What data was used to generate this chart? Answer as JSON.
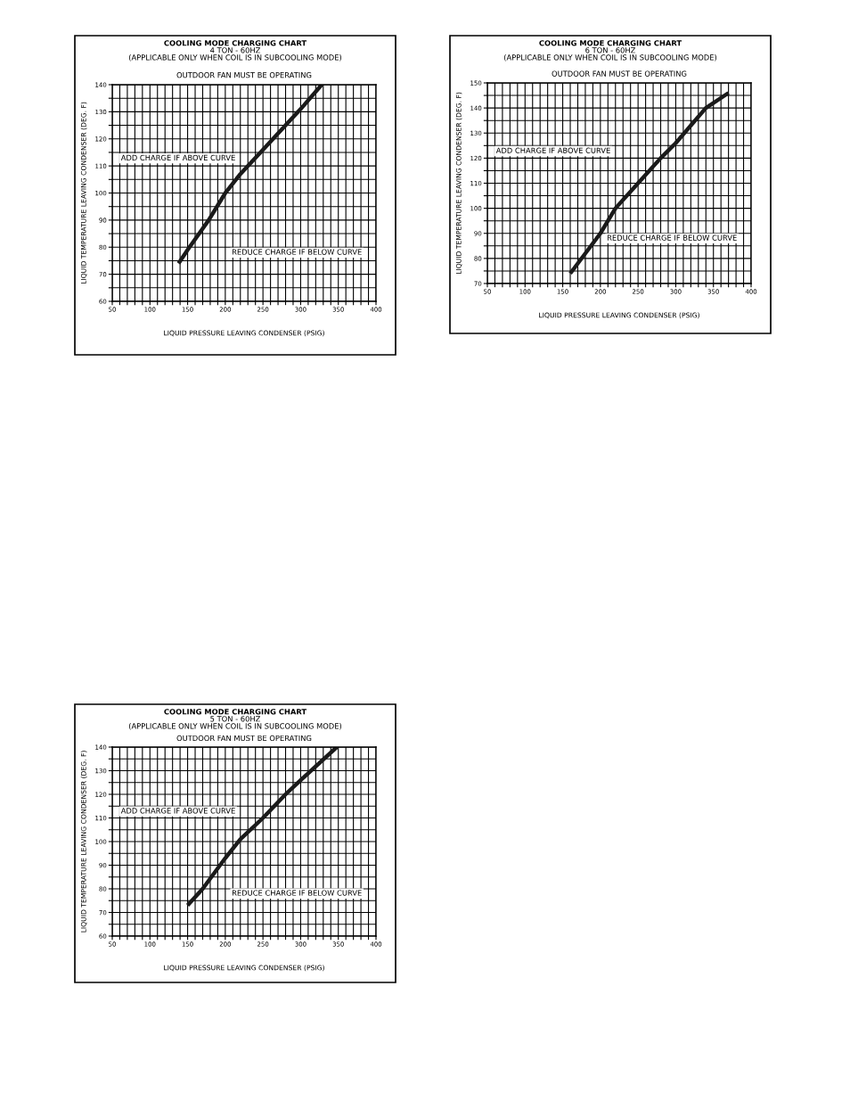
{
  "chart_data": [
    {
      "type": "line",
      "title": "COOLING MODE CHARGING CHART",
      "subtitle": "4 TON - 60HZ\n(APPLICABLE ONLY WHEN COIL IS IN SUBCOOLING MODE)",
      "xlabel": "LIQUID PRESSURE LEAVING CONDENSER (PSIG)",
      "ylabel": "LIQUID TEMPERATURE LEAVING CONDENSER (DEG. F)",
      "annotations": [
        "OUTDOOR FAN MUST BE OPERATING",
        "ADD CHARGE IF ABOVE CURVE",
        "REDUCE CHARGE IF BELOW CURVE"
      ],
      "series": [
        {
          "color": "#1a1a1a",
          "x": [
            138,
            150,
            178,
            200,
            220,
            250,
            280,
            300,
            328
          ],
          "values": [
            74,
            79,
            90,
            100,
            107,
            116,
            125,
            131,
            140
          ]
        }
      ],
      "xlim": [
        50,
        400
      ],
      "ylim": [
        60,
        140
      ],
      "xticks": [
        50,
        {
          "value": 60,
          "label": null
        },
        {
          "value": 70,
          "label": null
        },
        {
          "value": 80,
          "label": null
        },
        {
          "value": 90,
          "label": null
        },
        100,
        {
          "value": 110,
          "label": null
        },
        {
          "value": 120,
          "label": null
        },
        {
          "value": 130,
          "label": null
        },
        {
          "value": 140,
          "label": null
        },
        150,
        {
          "value": 160,
          "label": null
        },
        {
          "value": 170,
          "label": null
        },
        {
          "value": 180,
          "label": null
        },
        {
          "value": 190,
          "label": null
        },
        200,
        {
          "value": 210,
          "label": null
        },
        {
          "value": 220,
          "label": null
        },
        {
          "value": 230,
          "label": null
        },
        {
          "value": 240,
          "label": null
        },
        250,
        {
          "value": 260,
          "label": null
        },
        {
          "value": 270,
          "label": null
        },
        {
          "value": 280,
          "label": null
        },
        {
          "value": 290,
          "label": null
        },
        300,
        {
          "value": 310,
          "label": null
        },
        {
          "value": 320,
          "label": null
        },
        {
          "value": 330,
          "label": null
        },
        {
          "value": 340,
          "label": null
        },
        350,
        {
          "value": 360,
          "label": null
        },
        {
          "value": 370,
          "label": null
        },
        {
          "value": 380,
          "label": null
        },
        {
          "value": 390,
          "label": null
        },
        400
      ],
      "yticks": [
        60,
        {
          "value": 65,
          "label": null
        },
        70,
        {
          "value": 75,
          "label": null
        },
        80,
        {
          "value": 85,
          "label": null
        },
        90,
        {
          "value": 95,
          "label": null
        },
        100,
        {
          "value": 105,
          "label": null
        },
        110,
        {
          "value": 115,
          "label": null
        },
        120,
        {
          "value": 125,
          "label": null
        },
        130,
        {
          "value": 135,
          "label": null
        },
        140
      ],
      "grid": true,
      "marker": "none",
      "line_style": "solid"
    },
    {
      "type": "line",
      "title": "COOLING MODE CHARGING CHART",
      "subtitle": "5 TON - 60HZ\n(APPLICABLE ONLY WHEN COIL IS IN SUBCOOLING MODE)",
      "xlabel": "LIQUID PRESSURE LEAVING CONDENSER (PSIG)",
      "ylabel": "LIQUID TEMPERATURE LEAVING CONDENSER (DEG. F)",
      "annotations": [
        "OUTDOOR FAN MUST BE OPERATING",
        "ADD CHARGE IF ABOVE CURVE",
        "REDUCE CHARGE IF BELOW CURVE"
      ],
      "series": [
        {
          "color": "#1a1a1a",
          "x": [
            150,
            170,
            200,
            220,
            250,
            280,
            300,
            348
          ],
          "values": [
            73,
            80,
            93,
            101,
            110,
            120,
            126,
            140
          ]
        }
      ],
      "xlim": [
        50,
        400
      ],
      "ylim": [
        60,
        140
      ],
      "xticks": [
        50,
        {
          "value": 60,
          "label": null
        },
        {
          "value": 70,
          "label": null
        },
        {
          "value": 80,
          "label": null
        },
        {
          "value": 90,
          "label": null
        },
        100,
        {
          "value": 110,
          "label": null
        },
        {
          "value": 120,
          "label": null
        },
        {
          "value": 130,
          "label": null
        },
        {
          "value": 140,
          "label": null
        },
        150,
        {
          "value": 160,
          "label": null
        },
        {
          "value": 170,
          "label": null
        },
        {
          "value": 180,
          "label": null
        },
        {
          "value": 190,
          "label": null
        },
        200,
        {
          "value": 210,
          "label": null
        },
        {
          "value": 220,
          "label": null
        },
        {
          "value": 230,
          "label": null
        },
        {
          "value": 240,
          "label": null
        },
        250,
        {
          "value": 260,
          "label": null
        },
        {
          "value": 270,
          "label": null
        },
        {
          "value": 280,
          "label": null
        },
        {
          "value": 290,
          "label": null
        },
        300,
        {
          "value": 310,
          "label": null
        },
        {
          "value": 320,
          "label": null
        },
        {
          "value": 330,
          "label": null
        },
        {
          "value": 340,
          "label": null
        },
        350,
        {
          "value": 360,
          "label": null
        },
        {
          "value": 370,
          "label": null
        },
        {
          "value": 380,
          "label": null
        },
        {
          "value": 390,
          "label": null
        },
        400
      ],
      "yticks": [
        60,
        {
          "value": 65,
          "label": null
        },
        70,
        {
          "value": 75,
          "label": null
        },
        80,
        {
          "value": 85,
          "label": null
        },
        90,
        {
          "value": 95,
          "label": null
        },
        100,
        {
          "value": 105,
          "label": null
        },
        110,
        {
          "value": 115,
          "label": null
        },
        120,
        {
          "value": 125,
          "label": null
        },
        130,
        {
          "value": 135,
          "label": null
        },
        140
      ],
      "grid": true,
      "marker": "none",
      "line_style": "solid"
    },
    {
      "type": "line",
      "title": "COOLING MODE CHARGING CHART",
      "subtitle": "6 TON - 60HZ\n(APPLICABLE ONLY WHEN COIL IS IN SUBCOOLING MODE)",
      "xlabel": "LIQUID PRESSURE LEAVING CONDENSER (PSIG)",
      "ylabel": "LIQUID TEMPERATURE LEAVING CONDENSER (DEG. F)",
      "annotations": [
        "OUTDOOR FAN MUST BE OPERATING",
        "ADD CHARGE IF ABOVE CURVE",
        "REDUCE CHARGE IF BELOW CURVE"
      ],
      "series": [
        {
          "color": "#1a1a1a",
          "x": [
            160,
            200,
            220,
            250,
            280,
            300,
            320,
            340,
            370
          ],
          "values": [
            74,
            90,
            100,
            110,
            120,
            126,
            133,
            140,
            146
          ]
        }
      ],
      "xlim": [
        50,
        400
      ],
      "ylim": [
        70,
        150
      ],
      "xticks": [
        50,
        {
          "value": 60,
          "label": null
        },
        {
          "value": 70,
          "label": null
        },
        {
          "value": 80,
          "label": null
        },
        {
          "value": 90,
          "label": null
        },
        100,
        {
          "value": 110,
          "label": null
        },
        {
          "value": 120,
          "label": null
        },
        {
          "value": 130,
          "label": null
        },
        {
          "value": 140,
          "label": null
        },
        150,
        {
          "value": 160,
          "label": null
        },
        {
          "value": 170,
          "label": null
        },
        {
          "value": 180,
          "label": null
        },
        {
          "value": 190,
          "label": null
        },
        200,
        {
          "value": 210,
          "label": null
        },
        {
          "value": 220,
          "label": null
        },
        {
          "value": 230,
          "label": null
        },
        {
          "value": 240,
          "label": null
        },
        250,
        {
          "value": 260,
          "label": null
        },
        {
          "value": 270,
          "label": null
        },
        {
          "value": 280,
          "label": null
        },
        {
          "value": 290,
          "label": null
        },
        300,
        {
          "value": 310,
          "label": null
        },
        {
          "value": 320,
          "label": null
        },
        {
          "value": 330,
          "label": null
        },
        {
          "value": 340,
          "label": null
        },
        350,
        {
          "value": 360,
          "label": null
        },
        {
          "value": 370,
          "label": null
        },
        {
          "value": 380,
          "label": null
        },
        {
          "value": 390,
          "label": null
        },
        400
      ],
      "yticks": [
        70,
        {
          "value": 75,
          "label": null
        },
        80,
        {
          "value": 85,
          "label": null
        },
        90,
        {
          "value": 95,
          "label": null
        },
        100,
        {
          "value": 105,
          "label": null
        },
        110,
        {
          "value": 115,
          "label": null
        },
        120,
        {
          "value": 125,
          "label": null
        },
        130,
        {
          "value": 135,
          "label": null
        },
        140,
        {
          "value": 145,
          "label": null
        },
        150
      ],
      "grid": true,
      "marker": "none",
      "line_style": "solid"
    }
  ]
}
